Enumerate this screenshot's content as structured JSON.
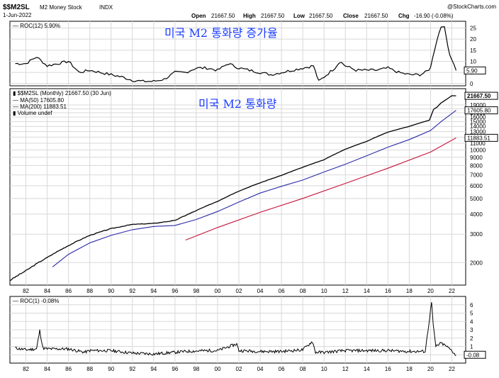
{
  "header": {
    "symbol": "$$M2SL",
    "name": "M2 Money Stock",
    "exchange": "INDX",
    "date": "1-Jun-2022",
    "credit": "@StockCharts.com",
    "open_label": "Open",
    "open": "21667.50",
    "high_label": "High",
    "high": "21667.50",
    "low_label": "Low",
    "low": "21667.50",
    "close_label": "Close",
    "close": "21667.50",
    "chg_label": "Chg",
    "chg": "-16.90 (-0.08%)"
  },
  "annotations": {
    "top": "미국 M2 통화량 증가율",
    "main": "미국 M2 통화량"
  },
  "colors": {
    "price": "#000000",
    "ma50": "#2a2aa8",
    "ma200": "#c4143c",
    "grid": "#d8d8d8",
    "annotation": "#1a3cff"
  },
  "chart_data": [
    {
      "type": "line",
      "panel": "top",
      "legend": "ROC(12) 5.90%",
      "last_value": "5.90",
      "y_ticks": [
        0,
        5,
        10,
        15,
        20,
        25
      ],
      "ylim": [
        -1,
        28
      ],
      "x": [
        1981,
        1982,
        1983,
        1984,
        1985,
        1986,
        1987,
        1988,
        1989,
        1990,
        1991,
        1992,
        1993,
        1994,
        1995,
        1996,
        1997,
        1998,
        1999,
        2000,
        2001,
        2002,
        2003,
        2004,
        2005,
        2006,
        2007,
        2008,
        2009,
        2009.5,
        2010,
        2011,
        2011.5,
        2012,
        2013,
        2014,
        2015,
        2016,
        2017,
        2018,
        2019,
        2019.5,
        2020,
        2020.2,
        2020.8,
        2021,
        2021.3,
        2021.8,
        2022,
        2022.4
      ],
      "values": [
        9,
        9,
        12,
        8,
        9,
        10,
        5,
        6,
        5,
        4,
        3,
        1.5,
        1,
        1,
        2,
        5,
        5,
        7,
        7,
        6,
        9,
        7,
        6,
        5,
        4,
        5,
        6,
        7,
        8,
        1,
        3,
        7,
        10,
        8,
        6,
        6,
        6,
        7,
        5,
        4,
        4,
        5,
        7,
        12,
        23,
        26,
        25,
        13,
        11,
        5.9
      ]
    },
    {
      "type": "line",
      "panel": "main",
      "legend": "$$M2SL (Monthly) 21667.50 (30 Jun)",
      "y_scale": "log",
      "ylim": [
        1450,
        24000
      ],
      "y_ticks": [
        2000,
        3000,
        4000,
        5000,
        6000,
        7000,
        8000,
        9000,
        10000,
        11000,
        12000,
        13000,
        14000,
        15000,
        16000,
        17000,
        18000,
        19000
      ],
      "x_ticks": [
        1982,
        1984,
        1986,
        1988,
        1990,
        1992,
        1994,
        1996,
        1998,
        2000,
        2002,
        2004,
        2006,
        2008,
        2010,
        2012,
        2014,
        2016,
        2018,
        2020,
        2022
      ],
      "x_labels": [
        "82",
        "84",
        "86",
        "88",
        "90",
        "92",
        "94",
        "96",
        "98",
        "00",
        "02",
        "04",
        "06",
        "08",
        "10",
        "12",
        "14",
        "16",
        "18",
        "20",
        "22"
      ],
      "price_tag": "21667.50",
      "series": [
        {
          "name": "$$M2SL",
          "x": [
            1980.5,
            1982,
            1984,
            1986,
            1988,
            1990,
            1992,
            1994,
            1996,
            1998,
            2000,
            2002,
            2004,
            2006,
            2008,
            2010,
            2012,
            2014,
            2016,
            2018,
            2019,
            2019.9,
            2020.3,
            2020.6,
            2021,
            2021.5,
            2022,
            2022.4
          ],
          "values": [
            1550,
            1780,
            2150,
            2550,
            2950,
            3250,
            3450,
            3500,
            3650,
            4200,
            4800,
            5550,
            6250,
            6950,
            7800,
            8700,
            10100,
            11300,
            12900,
            14000,
            14700,
            15300,
            17900,
            18400,
            19600,
            20600,
            21700,
            21667.5
          ]
        },
        {
          "name": "MA(50) 17605.80",
          "tag": "17605.80",
          "x": [
            1984.5,
            1986,
            1988,
            1990,
            1992,
            1994,
            1996,
            1998,
            2000,
            2002,
            2004,
            2006,
            2008,
            2010,
            2012,
            2014,
            2016,
            2018,
            2020,
            2021,
            2022.4
          ],
          "values": [
            1880,
            2250,
            2650,
            2950,
            3200,
            3350,
            3400,
            3700,
            4150,
            4750,
            5400,
            5950,
            6500,
            7300,
            8150,
            9200,
            10400,
            11600,
            13200,
            15000,
            17605.8
          ]
        },
        {
          "name": "MA(200) 11883.51",
          "tag": "11883.51",
          "x": [
            1997,
            2000,
            2004,
            2008,
            2012,
            2016,
            2020,
            2022.4
          ],
          "values": [
            2760,
            3300,
            4100,
            5000,
            6200,
            7700,
            9700,
            11883.51
          ]
        }
      ],
      "extra_legend": "Volume undef"
    },
    {
      "type": "line",
      "panel": "bottom",
      "legend": "ROC(1) -0.08%",
      "last_value": "-0.08",
      "y_ticks": [
        0,
        1,
        2,
        3,
        4,
        5,
        6
      ],
      "ylim": [
        -1,
        7
      ],
      "x": [
        1981,
        1982,
        1983,
        1983.3,
        1983.6,
        1984,
        1986,
        1987.5,
        1988,
        1990,
        1992,
        1994,
        1995,
        1997,
        1999,
        2000,
        2001.8,
        2002,
        2004,
        2006,
        2008,
        2008.9,
        2009.2,
        2010,
        2012,
        2014,
        2016,
        2018,
        2019.5,
        2020.1,
        2020.25,
        2020.5,
        2021,
        2021.5,
        2022,
        2022.4
      ],
      "values": [
        0.8,
        0.6,
        0.7,
        2.9,
        0.8,
        0.7,
        0.7,
        0.3,
        0.5,
        0.5,
        0.2,
        0.1,
        0.2,
        0.4,
        0.5,
        0.5,
        1.3,
        0.5,
        0.4,
        0.4,
        0.6,
        1.6,
        0.3,
        0.3,
        0.5,
        0.5,
        0.5,
        0.4,
        0.4,
        6.3,
        3.5,
        1.0,
        1.4,
        1.0,
        0.5,
        -0.08
      ]
    }
  ]
}
